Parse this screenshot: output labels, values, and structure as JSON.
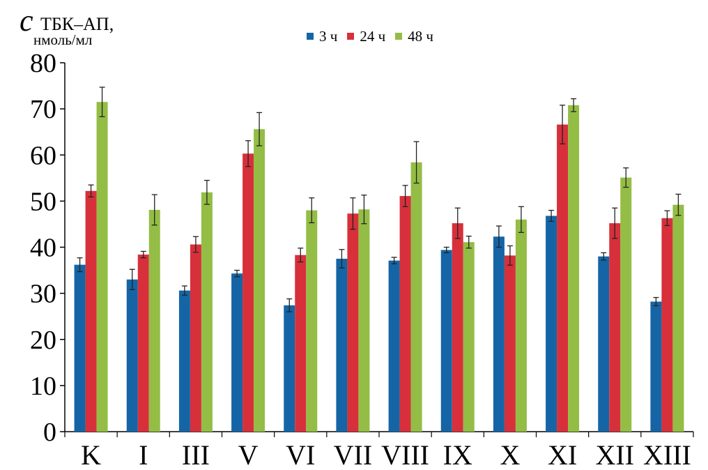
{
  "chart_data": {
    "type": "bar",
    "ylabel_symbol": "c",
    "ylabel_subscript": "ТБК–АП,",
    "ylabel_unit": "нмоль/мл",
    "ylim": [
      0,
      80
    ],
    "yticks": [
      0,
      10,
      20,
      30,
      40,
      50,
      60,
      70,
      80
    ],
    "yticklabels": [
      "0",
      "10",
      "20",
      "30",
      "40",
      "50",
      "60",
      "70",
      "80"
    ],
    "legend_position": "top-center",
    "categories": [
      "K",
      "I",
      "III",
      "V",
      "VI",
      "VII",
      "VIII",
      "IX",
      "X",
      "XI",
      "XII",
      "XIII"
    ],
    "series": [
      {
        "name": "3 ч",
        "color": "#1565a6",
        "values": [
          36.2,
          33.0,
          30.6,
          34.3,
          27.4,
          37.5,
          37.1,
          39.4,
          42.3,
          46.8,
          38.0,
          28.2
        ],
        "errors": [
          1.5,
          2.2,
          1.0,
          0.7,
          1.4,
          2.0,
          0.7,
          0.6,
          2.3,
          1.2,
          0.8,
          0.9
        ]
      },
      {
        "name": "24 ч",
        "color": "#d7303b",
        "values": [
          52.2,
          38.4,
          40.6,
          60.3,
          38.3,
          47.3,
          51.1,
          45.2,
          38.2,
          66.6,
          45.2,
          46.3
        ],
        "errors": [
          1.3,
          0.7,
          1.7,
          2.8,
          1.5,
          3.4,
          2.3,
          3.3,
          2.1,
          4.2,
          3.3,
          1.6
        ]
      },
      {
        "name": "48 ч",
        "color": "#94bd45",
        "values": [
          71.5,
          48.1,
          51.9,
          65.6,
          48.0,
          48.2,
          58.4,
          41.1,
          46.0,
          70.8,
          55.1,
          49.2
        ],
        "errors": [
          3.2,
          3.3,
          2.6,
          3.6,
          2.7,
          3.1,
          4.5,
          1.3,
          2.8,
          1.4,
          2.1,
          2.3
        ]
      }
    ]
  }
}
